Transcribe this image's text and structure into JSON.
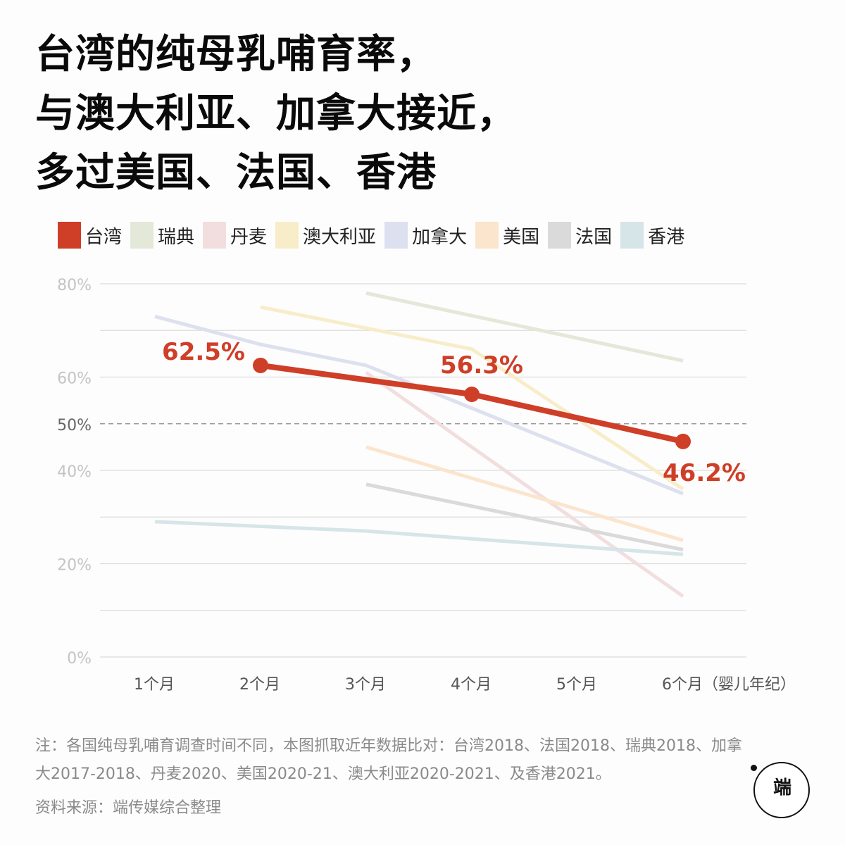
{
  "title_lines": [
    "台湾的纯母乳哺育率，",
    "与澳大利亚、加拿大接近，",
    "多过美国、法国、香港"
  ],
  "chart_data": {
    "type": "line",
    "x_categories": [
      "1个月",
      "2个月",
      "3个月",
      "4个月",
      "5个月",
      "6个月（婴儿年纪）"
    ],
    "y_ticks": [
      "0%",
      "20%",
      "40%",
      "50%",
      "60%",
      "80%"
    ],
    "ylim": [
      0,
      80
    ],
    "reference_line": 50,
    "series": [
      {
        "name": "瑞典",
        "color": "#e3e8d8",
        "points": [
          [
            2,
            78
          ],
          [
            5,
            63.5
          ]
        ]
      },
      {
        "name": "丹麦",
        "color": "#f2dede",
        "points": [
          [
            2,
            61
          ],
          [
            5,
            13
          ]
        ]
      },
      {
        "name": "澳大利亚",
        "color": "#f8edc9",
        "points": [
          [
            1,
            75
          ],
          [
            3,
            66
          ],
          [
            5,
            36
          ]
        ]
      },
      {
        "name": "加拿大",
        "color": "#dde0ee",
        "points": [
          [
            0,
            73
          ],
          [
            1,
            67
          ],
          [
            2,
            62.5
          ],
          [
            5,
            35
          ]
        ]
      },
      {
        "name": "美国",
        "color": "#fbe5cd",
        "points": [
          [
            2,
            45
          ],
          [
            5,
            25
          ]
        ]
      },
      {
        "name": "法国",
        "color": "#dadada",
        "points": [
          [
            2,
            37
          ],
          [
            5,
            23
          ]
        ]
      },
      {
        "name": "香港",
        "color": "#d6e5e8",
        "points": [
          [
            0,
            29
          ],
          [
            2,
            27
          ],
          [
            5,
            22
          ]
        ]
      },
      {
        "name": "台湾",
        "color": "#cf3e27",
        "points": [
          [
            1,
            62.5
          ],
          [
            3,
            56.3
          ],
          [
            5,
            46.2
          ]
        ],
        "labels": [
          "62.5%",
          "56.3%",
          "46.2%"
        ]
      }
    ]
  },
  "legend": [
    {
      "name": "台湾",
      "color": "#cf3e27"
    },
    {
      "name": "瑞典",
      "color": "#e3e8d8"
    },
    {
      "name": "丹麦",
      "color": "#f2dede"
    },
    {
      "name": "澳大利亚",
      "color": "#f8edc9"
    },
    {
      "name": "加拿大",
      "color": "#dde0ee"
    },
    {
      "name": "美国",
      "color": "#fbe5cd"
    },
    {
      "name": "法国",
      "color": "#dadada"
    },
    {
      "name": "香港",
      "color": "#d6e5e8"
    }
  ],
  "note": "注：各国纯母乳哺育调查时间不同，本图抓取近年数据比对：台湾2018、法国2018、瑞典2018、加拿大2017-2018、丹麦2020、美国2020-21、澳大利亚2020-2021、及香港2021。",
  "source": "资料来源：端传媒综合整理",
  "logo_text": "端"
}
